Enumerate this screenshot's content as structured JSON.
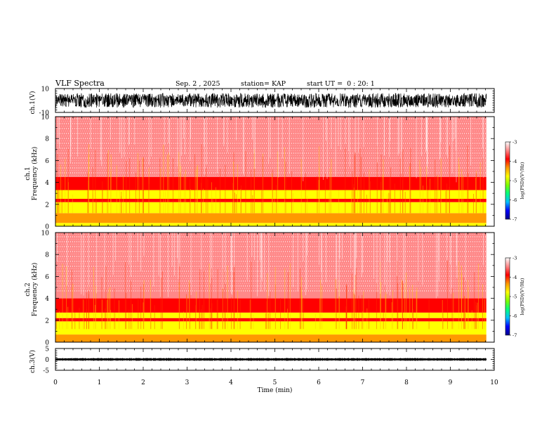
{
  "header": {
    "title": "VLF Spectra",
    "date": "Sep. 2 , 2025",
    "station": "station= KAP",
    "start_ut": "start UT =  0 : 20: 1"
  },
  "colors": {
    "colormap": [
      "#00008b",
      "#0000ff",
      "#00c0ff",
      "#00ff80",
      "#80ff00",
      "#ffff00",
      "#ff9900",
      "#ff0000",
      "#ff8888",
      "#ffffff"
    ],
    "waveform": "#000000",
    "axis": "#000000"
  },
  "chart_data": [
    {
      "type": "line",
      "panel": "ch1-waveform",
      "ylabel": "ch.1(V)",
      "ylim": [
        -10,
        10
      ],
      "yticks": [
        10,
        -10
      ],
      "xlim": [
        0,
        10
      ],
      "description_series": {
        "min": -6,
        "max": 6,
        "baseline": 0,
        "duration_min": 9.82
      }
    },
    {
      "type": "heatmap",
      "panel": "ch1-spectrogram",
      "ylabel": "ch.1\nFrequency (kHz)",
      "ylabel_line1": "ch.1",
      "ylabel_line2": "Frequency (kHz)",
      "ylim": [
        0,
        10
      ],
      "yticks": [
        0,
        2,
        4,
        6,
        8,
        10
      ],
      "xlim": [
        0,
        10
      ],
      "data_end_min": 9.82,
      "bands": [
        {
          "f_lo": 0.0,
          "f_hi": 0.3,
          "level": -4.6
        },
        {
          "f_lo": 0.3,
          "f_hi": 1.2,
          "level": -4.3
        },
        {
          "f_lo": 1.2,
          "f_hi": 2.2,
          "level": -5.0
        },
        {
          "f_lo": 2.2,
          "f_hi": 2.5,
          "level": -3.9
        },
        {
          "f_lo": 2.5,
          "f_hi": 3.3,
          "level": -4.9
        },
        {
          "f_lo": 3.3,
          "f_hi": 4.5,
          "level": -3.9
        },
        {
          "f_lo": 4.5,
          "f_hi": 10.0,
          "level": -3.3
        }
      ],
      "colorbar": {
        "label": "log(PSD)(V²/Hz)",
        "range": [
          -7,
          -3
        ],
        "ticks": [
          -3,
          -4,
          -5,
          -6,
          -7
        ]
      }
    },
    {
      "type": "heatmap",
      "panel": "ch2-spectrogram",
      "ylabel": "ch.2\nFrequency (kHz)",
      "ylabel_line1": "ch.2",
      "ylabel_line2": "Frequency (kHz)",
      "ylim": [
        0,
        10
      ],
      "yticks": [
        0,
        2,
        4,
        6,
        8,
        10
      ],
      "xlim": [
        0,
        10
      ],
      "data_end_min": 9.82,
      "bands": [
        {
          "f_lo": 0.0,
          "f_hi": 0.7,
          "level": -4.5
        },
        {
          "f_lo": 0.7,
          "f_hi": 1.9,
          "level": -5.0
        },
        {
          "f_lo": 1.9,
          "f_hi": 2.2,
          "level": -3.9
        },
        {
          "f_lo": 2.2,
          "f_hi": 2.7,
          "level": -4.9
        },
        {
          "f_lo": 2.7,
          "f_hi": 4.0,
          "level": -3.9
        },
        {
          "f_lo": 4.0,
          "f_hi": 10.0,
          "level": -3.3
        }
      ],
      "colorbar": {
        "label": "log(PSD)(V²/Hz)",
        "range": [
          -7,
          -3
        ],
        "ticks": [
          -3,
          -4,
          -5,
          -6,
          -7
        ]
      }
    },
    {
      "type": "line",
      "panel": "ch3-waveform",
      "ylabel": "ch.3(V)",
      "ylim": [
        -5,
        5
      ],
      "yticks": [
        5,
        0,
        -5
      ],
      "xlim": [
        0,
        10
      ],
      "description_series": {
        "min": -0.6,
        "max": 0.6,
        "baseline": 0,
        "duration_min": 9.82
      }
    }
  ],
  "x_axis": {
    "label": "Time (min)",
    "ticks": [
      0,
      1,
      2,
      3,
      4,
      5,
      6,
      7,
      8,
      9,
      10
    ]
  }
}
